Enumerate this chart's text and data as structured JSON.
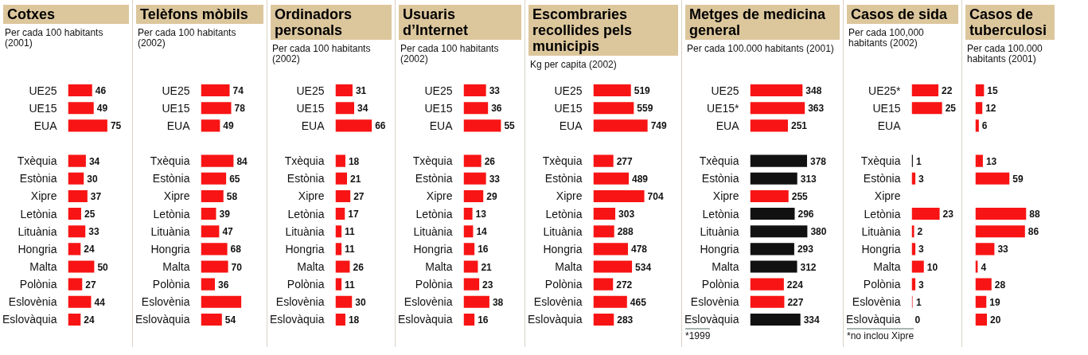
{
  "chart_data": [
    {
      "type": "bar",
      "orientation": "horizontal",
      "title": "Cotxes",
      "subtitle": "Per cada 100 habitants (2001)",
      "categories": [
        "UE25",
        "UE15",
        "EUA",
        null,
        "Txèquia",
        "Estònia",
        "Xipre",
        "Letònia",
        "Lituània",
        "Hongria",
        "Malta",
        "Polònia",
        "Eslovènia",
        "Eslovàquia"
      ],
      "values": [
        46,
        49,
        75,
        null,
        34,
        30,
        37,
        25,
        33,
        24,
        50,
        27,
        44,
        24
      ],
      "color": "#f81414",
      "data_labels": true,
      "tick_labels": "y"
    },
    {
      "type": "bar",
      "orientation": "horizontal",
      "title": "Telèfons mòbils",
      "subtitle": "Per cada 100 habitants (2002)",
      "categories": [
        "UE25",
        "UE15",
        "EUA",
        null,
        "Txèquia",
        "Estònia",
        "Xipre",
        "Letònia",
        "Lituània",
        "Hongria",
        "Malta",
        "Polònia",
        "Eslovènia",
        "Eslovàquia"
      ],
      "values": [
        74,
        78,
        49,
        null,
        84,
        65,
        58,
        39,
        47,
        68,
        70,
        36,
        104,
        54
      ],
      "value_labels": [
        "74",
        "78",
        "49",
        null,
        "84",
        "65",
        "58",
        "39",
        "47",
        "68",
        "70",
        "36",
        null,
        "54"
      ],
      "color": "#f81414",
      "tick_labels": "y"
    },
    {
      "type": "bar",
      "orientation": "horizontal",
      "title": "Ordinadors personals",
      "subtitle": "Per cada 100 habitants (2002)",
      "categories": [
        "UE25",
        "UE15",
        "EUA",
        null,
        "Txèquia",
        "Estònia",
        "Xipre",
        "Letònia",
        "Lituània",
        "Hongria",
        "Malta",
        "Polònia",
        "Eslovènia",
        "Eslovàquia"
      ],
      "values": [
        31,
        34,
        66,
        null,
        18,
        21,
        27,
        17,
        11,
        11,
        26,
        11,
        30,
        18
      ],
      "color": "#f81414",
      "data_labels": true,
      "tick_labels": "y"
    },
    {
      "type": "bar",
      "orientation": "horizontal",
      "title": "Usuaris d’Internet",
      "subtitle": "Per cada 100 habitants (2002)",
      "categories": [
        "UE25",
        "UE15",
        "EUA",
        null,
        "Txèquia",
        "Estònia",
        "Xipre",
        "Letònia",
        "Lituània",
        "Hongria",
        "Malta",
        "Polònia",
        "Eslovènia",
        "Eslovàquia"
      ],
      "values": [
        33,
        36,
        55,
        null,
        26,
        33,
        29,
        13,
        14,
        16,
        21,
        23,
        38,
        16
      ],
      "color": "#f81414",
      "data_labels": true,
      "tick_labels": "y"
    },
    {
      "type": "bar",
      "orientation": "horizontal",
      "title": "Escombraries recollides pels municipis",
      "subtitle": "Kg per capita (2002)",
      "categories": [
        "UE25",
        "UE15",
        "EUA",
        null,
        "Txèquia",
        "Estònia",
        "Xipre",
        "Letònia",
        "Lituània",
        "Hongria",
        "Malta",
        "Polònia",
        "Eslovènia",
        "Eslovàquia"
      ],
      "values": [
        519,
        559,
        749,
        null,
        277,
        489,
        704,
        303,
        288,
        478,
        534,
        272,
        465,
        283
      ],
      "color": "#f81414",
      "data_labels": true,
      "tick_labels": "y"
    },
    {
      "type": "bar",
      "orientation": "horizontal",
      "title": "Metges de medicina general",
      "subtitle": "Per cada 100.000 habitants (2001)",
      "categories": [
        "UE25",
        "UE15*",
        "EUA",
        null,
        "Txèquia",
        "Estònia",
        "Xipre",
        "Letònia",
        "Lituània",
        "Hongria",
        "Malta",
        "Polònia",
        "Eslovènia",
        "Eslovàquia"
      ],
      "values": [
        348,
        363,
        251,
        null,
        378,
        313,
        255,
        296,
        380,
        293,
        312,
        224,
        227,
        334
      ],
      "colors": [
        "#f81414",
        "#f81414",
        "#f81414",
        null,
        "#111111",
        "#111111",
        "#f81414",
        "#111111",
        "#111111",
        "#111111",
        "#111111",
        "#f81414",
        "#f81414",
        "#111111"
      ],
      "data_labels": true,
      "tick_labels": "y",
      "annotations": [
        "*1999"
      ]
    },
    {
      "type": "bar",
      "orientation": "horizontal",
      "title": "Casos de sida",
      "subtitle": "Per cada 100,000 habitants (2002)",
      "categories": [
        "UE25*",
        "UE15",
        "EUA",
        null,
        "Txèquia",
        "Estònia",
        "Xipre",
        "Letònia",
        "Lituània",
        "Hongria",
        "Malta",
        "Polònia",
        "Eslovènia",
        "Eslovàquia"
      ],
      "values": [
        22,
        25,
        null,
        null,
        1,
        3,
        null,
        23,
        2,
        3,
        10,
        3,
        1,
        0
      ],
      "colors": [
        "#f81414",
        "#f81414",
        null,
        null,
        "#222222",
        "#f81414",
        null,
        "#f81414",
        "#f81414",
        "#f81414",
        "#f81414",
        "#f81414",
        "#f08080",
        "#f81414"
      ],
      "data_labels": true,
      "tick_labels": "y",
      "annotations": [
        "*no inclou Xipre"
      ]
    },
    {
      "type": "bar",
      "orientation": "horizontal",
      "title": "Casos de tuberculosi",
      "subtitle": "Per cada 100.000 habitants (2001)",
      "categories": [
        null,
        null,
        null,
        null,
        null,
        null,
        null,
        null,
        null,
        null,
        null,
        null,
        null,
        null
      ],
      "values": [
        15,
        12,
        6,
        null,
        13,
        59,
        null,
        88,
        86,
        33,
        4,
        28,
        19,
        20
      ],
      "color": "#f81414",
      "data_labels": true,
      "tick_labels": false
    }
  ]
}
